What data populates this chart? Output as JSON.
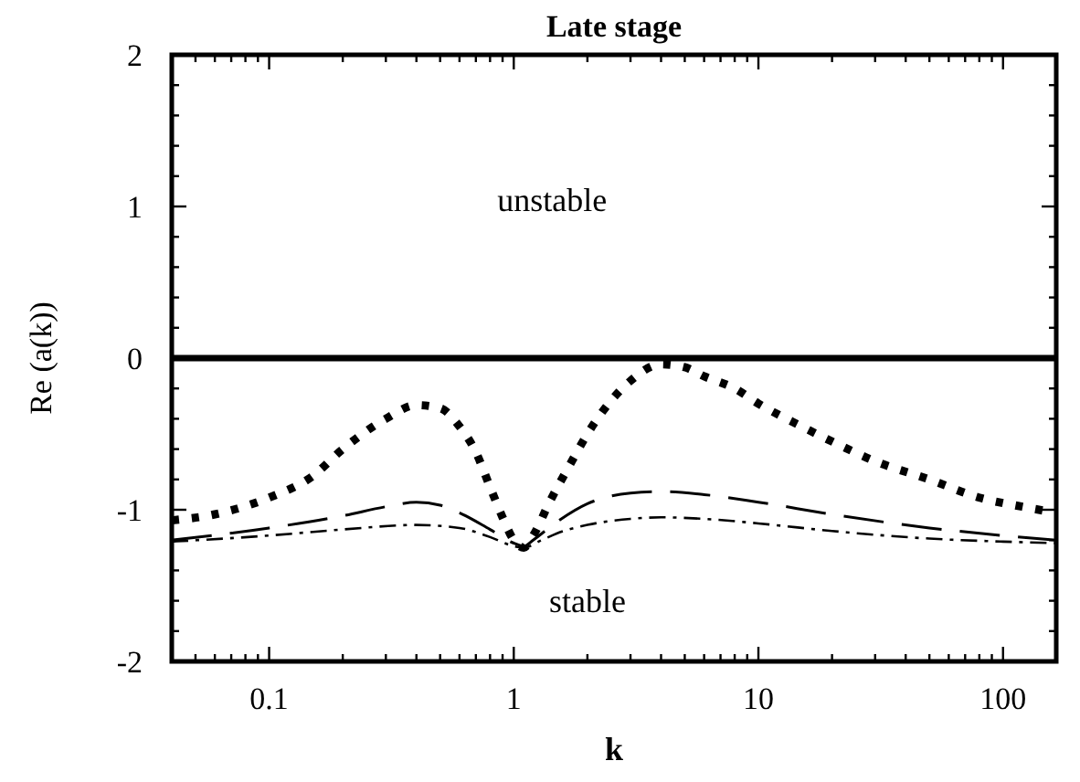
{
  "chart_data": {
    "type": "line",
    "title": "Late stage",
    "xlabel": "k",
    "ylabel": "Re (a(k))",
    "log": "x",
    "grid": false,
    "marker": "none",
    "xlim": [
      0.04,
      165
    ],
    "ylim": [
      -2,
      2
    ],
    "xticks": [
      {
        "value": 0.04,
        "label": null
      },
      {
        "value": 0.05,
        "label": null
      },
      {
        "value": 0.06,
        "label": null
      },
      {
        "value": 0.07,
        "label": null
      },
      {
        "value": 0.08,
        "label": null
      },
      {
        "value": 0.09,
        "label": null
      },
      0.1,
      {
        "value": 0.2,
        "label": null
      },
      {
        "value": 0.3,
        "label": null
      },
      {
        "value": 0.4,
        "label": null
      },
      {
        "value": 0.5,
        "label": null
      },
      {
        "value": 0.6,
        "label": null
      },
      {
        "value": 0.7,
        "label": null
      },
      {
        "value": 0.8,
        "label": null
      },
      {
        "value": 0.9,
        "label": null
      },
      1,
      {
        "value": 2,
        "label": null
      },
      {
        "value": 3,
        "label": null
      },
      {
        "value": 4,
        "label": null
      },
      {
        "value": 5,
        "label": null
      },
      {
        "value": 6,
        "label": null
      },
      {
        "value": 7,
        "label": null
      },
      {
        "value": 8,
        "label": null
      },
      {
        "value": 9,
        "label": null
      },
      10,
      {
        "value": 20,
        "label": null
      },
      {
        "value": 30,
        "label": null
      },
      {
        "value": 40,
        "label": null
      },
      {
        "value": 50,
        "label": null
      },
      {
        "value": 60,
        "label": null
      },
      {
        "value": 70,
        "label": null
      },
      {
        "value": 80,
        "label": null
      },
      {
        "value": 90,
        "label": null
      },
      100
    ],
    "yticks": [
      -2,
      {
        "value": -1.8,
        "label": null
      },
      {
        "value": -1.6,
        "label": null
      },
      {
        "value": -1.4,
        "label": null
      },
      {
        "value": -1.2,
        "label": null
      },
      -1,
      {
        "value": -0.8,
        "label": null
      },
      {
        "value": -0.6,
        "label": null
      },
      {
        "value": -0.4,
        "label": null
      },
      {
        "value": -0.2,
        "label": null
      },
      0,
      {
        "value": 0.2,
        "label": null
      },
      {
        "value": 0.4,
        "label": null
      },
      {
        "value": 0.6,
        "label": null
      },
      {
        "value": 0.8,
        "label": null
      },
      1,
      {
        "value": 1.2,
        "label": null
      },
      {
        "value": 1.4,
        "label": null
      },
      {
        "value": 1.6,
        "label": null
      },
      {
        "value": 1.8,
        "label": null
      },
      2
    ],
    "ref_lines": [
      {
        "axis": "y",
        "value": 0,
        "color": "#000000",
        "line_style": "solid"
      }
    ],
    "annotations": [
      "unstable",
      "stable"
    ],
    "series": [
      {
        "color": "#000000",
        "line_style": "dotted",
        "x": [
          0.04,
          0.06,
          0.1,
          0.15,
          0.2,
          0.3,
          0.4,
          0.5,
          0.6,
          0.7,
          0.8,
          0.9,
          1.0,
          1.1,
          1.2,
          1.4,
          1.7,
          2,
          2.5,
          3,
          4,
          5,
          6,
          8,
          10,
          15,
          20,
          30,
          50,
          80,
          120,
          165
        ],
        "values": [
          -1.07,
          -1.03,
          -0.92,
          -0.78,
          -0.6,
          -0.4,
          -0.31,
          -0.33,
          -0.45,
          -0.62,
          -0.85,
          -1.05,
          -1.2,
          -1.25,
          -1.17,
          -0.95,
          -0.7,
          -0.5,
          -0.28,
          -0.15,
          -0.04,
          -0.06,
          -0.12,
          -0.2,
          -0.3,
          -0.45,
          -0.55,
          -0.68,
          -0.8,
          -0.92,
          -0.98,
          -1.02
        ]
      },
      {
        "color": "#000000",
        "line_style": "dashed",
        "x": [
          0.04,
          0.1,
          0.2,
          0.3,
          0.4,
          0.5,
          0.6,
          0.8,
          1.0,
          1.1,
          1.2,
          1.5,
          2,
          3,
          4,
          6,
          10,
          20,
          50,
          100,
          165
        ],
        "values": [
          -1.2,
          -1.12,
          -1.04,
          -0.98,
          -0.95,
          -0.97,
          -1.02,
          -1.13,
          -1.22,
          -1.24,
          -1.2,
          -1.08,
          -0.96,
          -0.89,
          -0.88,
          -0.9,
          -0.95,
          -1.03,
          -1.12,
          -1.17,
          -1.2
        ]
      },
      {
        "color": "#000000",
        "line_style": "dashdot",
        "x": [
          0.04,
          0.1,
          0.2,
          0.4,
          0.6,
          0.8,
          1.0,
          1.1,
          1.3,
          1.6,
          2,
          3,
          4,
          6,
          10,
          20,
          50,
          100,
          165
        ],
        "values": [
          -1.21,
          -1.17,
          -1.13,
          -1.1,
          -1.12,
          -1.18,
          -1.24,
          -1.25,
          -1.2,
          -1.14,
          -1.1,
          -1.06,
          -1.05,
          -1.06,
          -1.09,
          -1.14,
          -1.19,
          -1.21,
          -1.22
        ]
      }
    ]
  }
}
